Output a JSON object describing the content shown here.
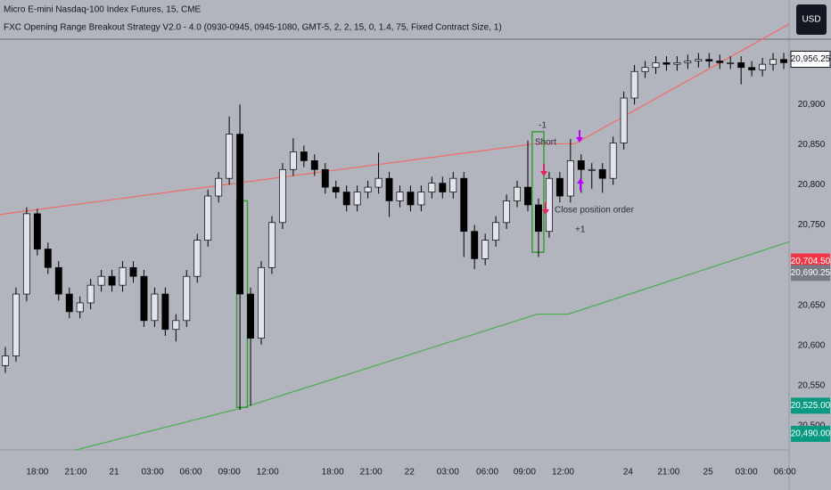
{
  "header": {
    "title": "Micro E-mini Nasdaq-100 Index Futures, 15, CME",
    "strategy": "FXC Opening Range Breakout Strategy V2.0 - 4.0 (0930-0945, 0945-1080, GMT-5, 2, 2, 15, 0, 1.4, 75, Fixed Contract Size, 1)",
    "currency_button": "USD"
  },
  "chart_data": {
    "type": "candlestick",
    "up_color": "#e0e3eb",
    "down_color": "#000000",
    "wick_color": "#000000",
    "open": [
      20575,
      20587,
      20664,
      20764,
      20720,
      20697,
      20664,
      20642,
      20653,
      20675,
      20686,
      20675,
      20697,
      20686,
      20631,
      20664,
      20620,
      20631,
      20686,
      20731,
      20786,
      20808,
      20863,
      20664,
      20609,
      20697,
      20753,
      20819,
      20841,
      20830,
      20819,
      20797,
      20791,
      20775,
      20791,
      20797,
      20808,
      20780,
      20791,
      20775,
      20791,
      20802,
      20791,
      20808,
      20742,
      20708,
      20731,
      20753,
      20780,
      20797,
      20775,
      20742,
      20808,
      20786,
      20830,
      20819,
      20819,
      20808,
      20852,
      20908,
      20941,
      20946,
      20952,
      20950,
      20952,
      20954,
      20956,
      20954,
      20952,
      20952,
      20946,
      20943,
      20950,
      20956
    ],
    "high": [
      20598,
      20672,
      20772,
      20770,
      20728,
      20705,
      20672,
      20661,
      20683,
      20694,
      20694,
      20705,
      20705,
      20694,
      20672,
      20672,
      20639,
      20694,
      20739,
      20794,
      20816,
      20885,
      20900,
      20672,
      20705,
      20761,
      20827,
      20858,
      20849,
      20838,
      20827,
      20805,
      20799,
      20799,
      20805,
      20840,
      20816,
      20799,
      20799,
      20799,
      20810,
      20810,
      20816,
      20816,
      20750,
      20739,
      20761,
      20788,
      20805,
      20855,
      20783,
      20816,
      20816,
      20857,
      20838,
      20827,
      20827,
      20860,
      20916,
      20949,
      20954,
      20960,
      20960,
      20960,
      20962,
      20964,
      20964,
      20962,
      20960,
      20960,
      20954,
      20958,
      20964,
      20964
    ],
    "low": [
      20566,
      20580,
      20655,
      20712,
      20689,
      20656,
      20634,
      20634,
      20645,
      20667,
      20667,
      20667,
      20678,
      20623,
      20623,
      20612,
      20605,
      20623,
      20678,
      20723,
      20778,
      20800,
      20520,
      20525,
      20601,
      20689,
      20745,
      20811,
      20822,
      20811,
      20789,
      20783,
      20767,
      20767,
      20783,
      20789,
      20760,
      20772,
      20767,
      20767,
      20783,
      20783,
      20783,
      20710,
      20695,
      20700,
      20723,
      20745,
      20772,
      20767,
      20710,
      20734,
      20778,
      20778,
      20790,
      20795,
      20790,
      20800,
      20844,
      20900,
      20933,
      20938,
      20942,
      20942,
      20944,
      20946,
      20946,
      20944,
      20944,
      20925,
      20935,
      20935,
      20942,
      20944
    ],
    "close": [
      20587,
      20664,
      20764,
      20720,
      20697,
      20664,
      20642,
      20653,
      20675,
      20686,
      20675,
      20697,
      20686,
      20631,
      20664,
      20620,
      20631,
      20686,
      20731,
      20786,
      20808,
      20863,
      20664,
      20609,
      20697,
      20753,
      20819,
      20841,
      20830,
      20819,
      20797,
      20791,
      20775,
      20791,
      20797,
      20808,
      20780,
      20791,
      20775,
      20791,
      20802,
      20791,
      20808,
      20742,
      20708,
      20731,
      20753,
      20780,
      20797,
      20775,
      20742,
      20808,
      20786,
      20830,
      20819,
      20819,
      20808,
      20852,
      20908,
      20941,
      20946,
      20952,
      20950,
      20952,
      20954,
      20956,
      20954,
      20952,
      20952,
      20946,
      20943,
      20950,
      20956,
      20952
    ],
    "xlim": [
      0,
      74
    ],
    "ylim": [
      20470,
      21030
    ],
    "xticks": [
      {
        "value": 3.5,
        "label": "18:00"
      },
      {
        "value": 7.1,
        "label": "21:00"
      },
      {
        "value": 10.7,
        "label": "21"
      },
      {
        "value": 14.3,
        "label": "03:00"
      },
      {
        "value": 17.9,
        "label": "06:00"
      },
      {
        "value": 21.5,
        "label": "09:00"
      },
      {
        "value": 25.1,
        "label": "12:00"
      },
      {
        "value": 31.2,
        "label": "18:00"
      },
      {
        "value": 34.8,
        "label": "21:00"
      },
      {
        "value": 38.4,
        "label": "22"
      },
      {
        "value": 42,
        "label": "03:00"
      },
      {
        "value": 45.7,
        "label": "06:00"
      },
      {
        "value": 49.2,
        "label": "09:00"
      },
      {
        "value": 52.8,
        "label": "12:00"
      },
      {
        "value": 58.9,
        "label": "24"
      },
      {
        "value": 62.7,
        "label": "21:00"
      },
      {
        "value": 66.4,
        "label": "25"
      },
      {
        "value": 70,
        "label": "03:00"
      },
      {
        "value": 73.6,
        "label": "06:00"
      }
    ],
    "yticks": [
      {
        "value": 20500,
        "label": "20,500"
      },
      {
        "value": 20550,
        "label": "20,550"
      },
      {
        "value": 20600,
        "label": "20,600"
      },
      {
        "value": 20650,
        "label": "20,650"
      },
      {
        "value": 20750,
        "label": "20,750"
      },
      {
        "value": 20800,
        "label": "20,800"
      },
      {
        "value": 20850,
        "label": "20,850"
      },
      {
        "value": 20900,
        "label": "20,900"
      }
    ],
    "price_labels": [
      {
        "value": 20956.25,
        "label": "20,956.25",
        "color": "#ffffff"
      },
      {
        "value": 20704.5,
        "label": "20,704.50",
        "color": "#f23645"
      },
      {
        "value": 20690.25,
        "label": "20,690.25",
        "color": "#787b86"
      },
      {
        "value": 20525,
        "label": "20,525.00",
        "color": "#089981"
      },
      {
        "value": 20490,
        "label": "20,490.00",
        "color": "#089981"
      }
    ],
    "lines": [
      {
        "color": "#f26b6b",
        "x": [
          0,
          50.1,
          53.9,
          74
        ],
        "values": [
          20763,
          20851,
          20851,
          21000
        ]
      },
      {
        "color": "#4caf50",
        "x": [
          7.1,
          22.9,
          50.4,
          53.3,
          74
        ],
        "values": [
          20470,
          20523,
          20639,
          20639,
          20729
        ]
      }
    ],
    "boxes": [
      {
        "color": "#3a9a3a",
        "x": [
          22.2,
          23.2
        ],
        "values": [
          20780,
          20523
        ]
      },
      {
        "color": "#3a9a3a",
        "x": [
          49.9,
          51.0
        ],
        "values": [
          20866,
          20716
        ]
      }
    ],
    "annotations": [
      "-1",
      "Short",
      "Close position order",
      "+1"
    ]
  }
}
